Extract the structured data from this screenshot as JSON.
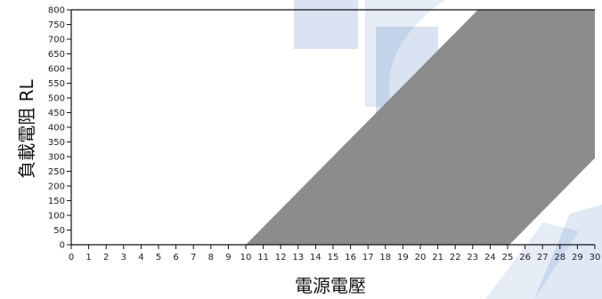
{
  "chart_data": {
    "type": "area",
    "xlabel": "電源電壓",
    "ylabel": "負載電阻 RL",
    "xlim": [
      0,
      30
    ],
    "ylim": [
      0,
      800
    ],
    "x_ticks": [
      0,
      1,
      2,
      3,
      4,
      5,
      6,
      7,
      8,
      9,
      10,
      11,
      12,
      13,
      14,
      15,
      16,
      17,
      18,
      19,
      20,
      21,
      22,
      23,
      24,
      25,
      26,
      27,
      28,
      29,
      30
    ],
    "y_ticks": [
      0,
      50,
      100,
      150,
      200,
      250,
      300,
      350,
      400,
      450,
      500,
      550,
      600,
      650,
      700,
      750,
      800
    ],
    "x_tick_labels": [
      "0",
      "1",
      "2",
      "3",
      "4",
      "5",
      "6",
      "7",
      "8",
      "9",
      "10",
      "11",
      "12",
      "13",
      "14",
      "15",
      "16",
      "17",
      "18",
      "19",
      "20",
      "21",
      "22",
      "23",
      "24",
      "25",
      "26",
      "27",
      "28",
      "29",
      "30"
    ],
    "y_tick_labels": [
      "0",
      "50",
      "100",
      "150",
      "200",
      "250",
      "300",
      "350",
      "400",
      "450",
      "500",
      "550",
      "600",
      "650",
      "700",
      "750",
      "800"
    ],
    "region": {
      "polygon": [
        [
          10,
          0
        ],
        [
          23.3,
          800
        ],
        [
          30,
          800
        ],
        [
          30,
          295
        ],
        [
          25.1,
          0
        ]
      ],
      "upper_boundary": [
        [
          10,
          0
        ],
        [
          23.3,
          800
        ]
      ],
      "lower_boundary": [
        [
          25.1,
          0
        ],
        [
          30,
          295
        ]
      ],
      "color": "#8c8c8c"
    },
    "background_colors": {
      "watermark": "#2b63b5"
    }
  }
}
